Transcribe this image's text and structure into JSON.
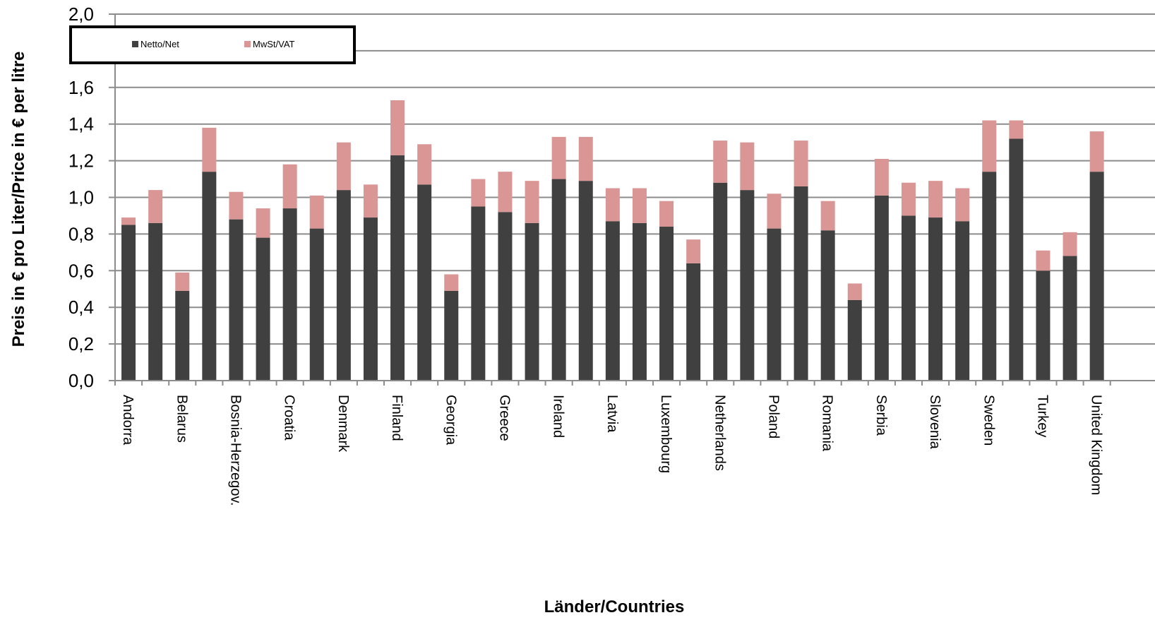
{
  "chart_data": {
    "type": "bar",
    "stacked": true,
    "title": "",
    "xlabel": "Länder/Countries",
    "ylabel": "Preis in € pro Liter/Price in € per litre",
    "ylim": [
      0,
      2.0
    ],
    "y_ticks": [
      "0,0",
      "0,2",
      "0,4",
      "0,6",
      "0,8",
      "1,0",
      "1,2",
      "1,4",
      "1,6",
      "1,8",
      "2,0"
    ],
    "grid": true,
    "legend_position": "top-left",
    "categories": [
      "Andorra",
      "",
      "Belarus",
      "",
      "Bosnia-Herzegov.",
      "",
      "Croatia",
      "",
      "Denmark",
      "",
      "Finland",
      "",
      "Georgia",
      "",
      "Greece",
      "",
      "Ireland",
      "",
      "Latvia",
      "",
      "Luxembourg",
      "",
      "Netherlands",
      "",
      "Poland",
      "",
      "Romania",
      "",
      "Serbia",
      "",
      "Slovenia",
      "",
      "Sweden",
      "",
      "Turkey",
      "",
      "United Kingdom"
    ],
    "series": [
      {
        "name": "Netto/Net",
        "color": "#404040",
        "values": [
          0.85,
          0.86,
          0.49,
          1.14,
          0.88,
          0.78,
          0.94,
          0.83,
          1.04,
          0.89,
          1.23,
          1.07,
          0.49,
          0.95,
          0.92,
          0.86,
          1.1,
          1.09,
          0.87,
          0.86,
          0.84,
          0.64,
          1.08,
          1.04,
          0.83,
          1.06,
          0.82,
          0.44,
          1.01,
          0.9,
          0.89,
          0.87,
          1.14,
          1.32,
          0.6,
          0.68,
          1.14
        ]
      },
      {
        "name": "MwSt/VAT",
        "color": "#d99694",
        "values": [
          0.04,
          0.18,
          0.1,
          0.24,
          0.15,
          0.16,
          0.24,
          0.18,
          0.26,
          0.18,
          0.3,
          0.22,
          0.09,
          0.15,
          0.22,
          0.23,
          0.23,
          0.24,
          0.18,
          0.19,
          0.14,
          0.13,
          0.23,
          0.26,
          0.19,
          0.25,
          0.16,
          0.09,
          0.2,
          0.18,
          0.2,
          0.18,
          0.28,
          0.1,
          0.11,
          0.13,
          0.22
        ]
      }
    ]
  }
}
